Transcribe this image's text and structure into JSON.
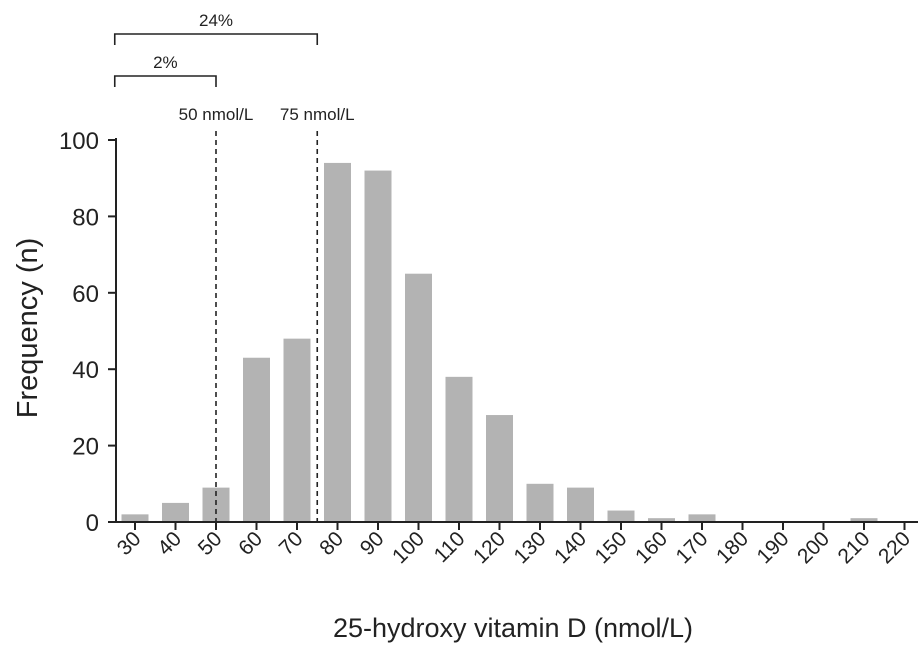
{
  "chart_data": {
    "type": "bar",
    "categories": [
      "30",
      "40",
      "50",
      "60",
      "70",
      "80",
      "90",
      "100",
      "110",
      "120",
      "130",
      "140",
      "150",
      "160",
      "170",
      "180",
      "190",
      "200",
      "210",
      "220"
    ],
    "values": [
      2,
      5,
      9,
      43,
      48,
      94,
      92,
      65,
      38,
      28,
      10,
      9,
      3,
      1,
      2,
      0,
      0,
      0,
      1,
      0
    ],
    "xlabel": "25-hydroxy vitamin D (nmol/L)",
    "ylabel": "Frequency (n)",
    "ylim": [
      0,
      100
    ],
    "yticks": [
      "0",
      "20",
      "40",
      "60",
      "80",
      "100"
    ],
    "bar_color": "#b3b3b3",
    "grid": false,
    "reference_lines": [
      {
        "x": 50,
        "label": "50 nmol/L",
        "style": "dashed"
      },
      {
        "x": 75,
        "label": "75 nmol/L",
        "style": "dashed"
      }
    ],
    "brackets": [
      {
        "from": 25,
        "to": 50,
        "label": "2%"
      },
      {
        "from": 25,
        "to": 75,
        "label": "24%"
      }
    ]
  }
}
